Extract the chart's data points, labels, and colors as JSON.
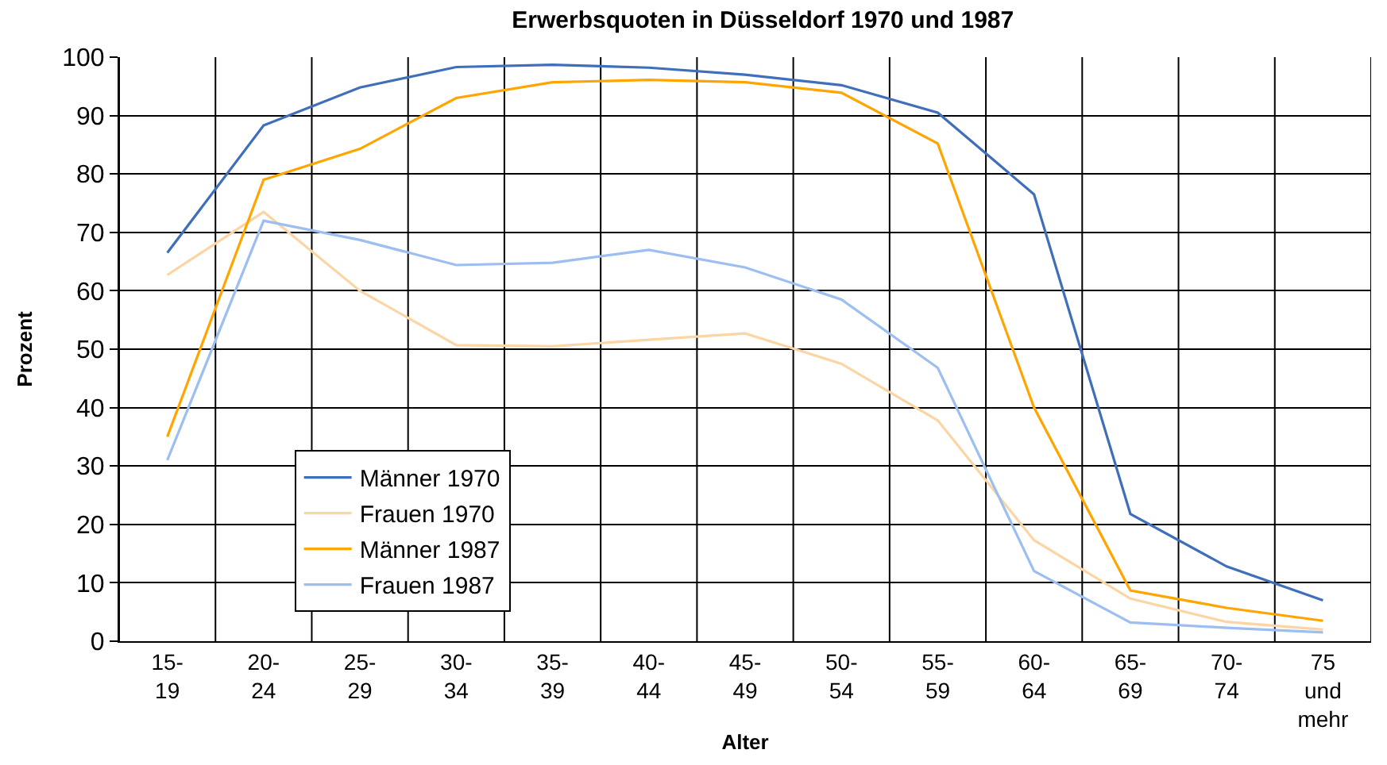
{
  "chart_data": {
    "type": "line",
    "title": "Erwerbsquoten in Düsseldorf 1970 und 1987",
    "xlabel": "Alter",
    "ylabel": "Prozent",
    "categories": [
      "15-\n19",
      "20-\n24",
      "25-\n29",
      "30-\n34",
      "35-\n39",
      "40-\n44",
      "45-\n49",
      "50-\n54",
      "55-\n59",
      "60-\n64",
      "65-\n69",
      "70-\n74",
      "75\nund\nmehr"
    ],
    "series": [
      {
        "name": "Männer 1970",
        "color": "#3f6fba",
        "values": [
          66.5,
          88.3,
          94.8,
          98.3,
          98.7,
          98.2,
          97,
          95.2,
          90.5,
          76.5,
          21.8,
          12.8,
          7
        ]
      },
      {
        "name": "Frauen 1970",
        "color": "#fcd5a5",
        "values": [
          62.7,
          73.5,
          60,
          50.7,
          50.5,
          51.6,
          52.7,
          47.5,
          37.8,
          17.3,
          7.3,
          3.3,
          2
        ]
      },
      {
        "name": "Männer 1987",
        "color": "#ffa500",
        "values": [
          35,
          79,
          84.3,
          93,
          95.7,
          96.1,
          95.7,
          93.9,
          85.2,
          40,
          8.7,
          5.7,
          3.5
        ]
      },
      {
        "name": "Frauen 1987",
        "color": "#9cbef0",
        "values": [
          31,
          72,
          68.7,
          64.4,
          64.8,
          67,
          64,
          58.5,
          46.8,
          12,
          3.2,
          2.3,
          1.5
        ]
      }
    ],
    "ylim": [
      0,
      100
    ],
    "yticks": [
      0,
      10,
      20,
      30,
      40,
      50,
      60,
      70,
      80,
      90,
      100
    ],
    "grid": true,
    "legend": "bottom left",
    "marker": "none",
    "line_style": "solid"
  }
}
